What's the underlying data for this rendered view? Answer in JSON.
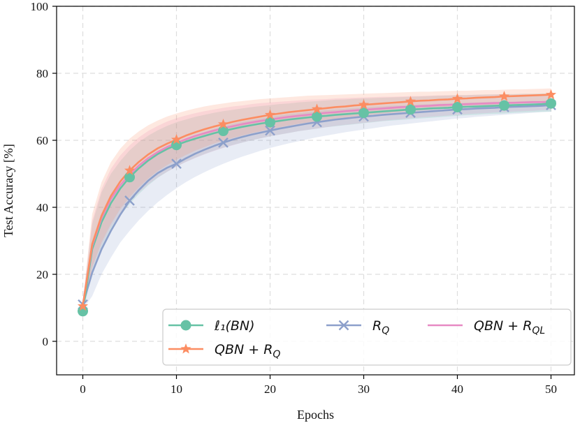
{
  "chart_data": {
    "type": "line",
    "title": "",
    "xlabel": "Epochs",
    "ylabel": "Test Accuracy [%]",
    "xlim": [
      -2.8,
      52.5
    ],
    "ylim": [
      -10,
      100
    ],
    "xticks": [
      0,
      10,
      20,
      30,
      40,
      50
    ],
    "yticks": [
      0,
      20,
      40,
      60,
      80,
      100
    ],
    "grid": true,
    "legend_position": "lower-right",
    "x": [
      0,
      1,
      2,
      3,
      4,
      5,
      6,
      7,
      8,
      9,
      10,
      11,
      12,
      13,
      14,
      15,
      16,
      17,
      18,
      19,
      20,
      21,
      22,
      23,
      24,
      25,
      26,
      27,
      28,
      29,
      30,
      31,
      32,
      33,
      34,
      35,
      36,
      37,
      38,
      39,
      40,
      41,
      42,
      43,
      44,
      45,
      46,
      47,
      48,
      49,
      50
    ],
    "marker_every": 5,
    "series": [
      {
        "name": "ℓ₁(BN)",
        "legend_label": "ℓ₁(BN)",
        "color": "#66c2a5",
        "marker": "circle",
        "values": [
          9.0,
          27.5,
          35.5,
          41.2,
          45.6,
          49.0,
          51.7,
          54.0,
          55.9,
          57.4,
          58.6,
          59.6,
          60.5,
          61.3,
          62.1,
          62.8,
          63.4,
          64.0,
          64.5,
          65.0,
          65.4,
          65.8,
          66.2,
          66.5,
          66.8,
          67.1,
          67.3,
          67.6,
          67.8,
          68.0,
          68.2,
          68.4,
          68.6,
          68.8,
          69.0,
          69.2,
          69.3,
          69.5,
          69.6,
          69.7,
          69.9,
          70.0,
          70.1,
          70.2,
          70.3,
          70.4,
          70.5,
          70.6,
          70.7,
          70.8,
          71.0
        ],
        "band_upper": [
          11.5,
          35.0,
          44.5,
          50.0,
          53.8,
          57.0,
          59.5,
          61.4,
          63.0,
          64.3,
          65.4,
          66.2,
          67.0,
          67.6,
          68.2,
          68.7,
          69.1,
          69.5,
          69.9,
          70.2,
          70.5,
          70.8,
          71.0,
          71.3,
          71.5,
          71.7,
          71.9,
          72.1,
          72.2,
          72.4,
          72.5,
          72.6,
          72.7,
          72.8,
          72.9,
          73.0,
          73.1,
          73.2,
          73.3,
          73.4,
          73.5,
          73.5,
          73.6,
          73.7,
          73.7,
          73.8,
          73.8,
          73.9,
          73.9,
          74.0,
          74.0
        ],
        "band_lower": [
          8.0,
          21.0,
          28.0,
          33.0,
          37.5,
          41.0,
          44.0,
          46.6,
          48.8,
          50.6,
          52.2,
          53.6,
          54.8,
          55.9,
          56.9,
          57.8,
          58.6,
          59.3,
          60.0,
          60.6,
          61.2,
          61.7,
          62.2,
          62.7,
          63.1,
          63.5,
          63.9,
          64.2,
          64.5,
          64.8,
          65.1,
          65.4,
          65.7,
          65.9,
          66.1,
          66.3,
          66.5,
          66.7,
          66.9,
          67.1,
          67.3,
          67.5,
          67.6,
          67.8,
          67.9,
          68.0,
          68.2,
          68.3,
          68.4,
          68.5,
          68.6
        ]
      },
      {
        "name": "QBN + R_Q",
        "legend_label": "QBN + R",
        "legend_sub": "Q",
        "color": "#fc8d62",
        "marker": "star",
        "values": [
          10.5,
          29.0,
          37.5,
          43.4,
          47.7,
          51.0,
          53.6,
          55.8,
          57.6,
          59.0,
          60.2,
          61.4,
          62.4,
          63.3,
          64.1,
          64.8,
          65.5,
          66.1,
          66.6,
          67.1,
          67.6,
          68.0,
          68.4,
          68.7,
          69.0,
          69.3,
          69.6,
          69.9,
          70.1,
          70.4,
          70.6,
          70.8,
          71.0,
          71.2,
          71.4,
          71.6,
          71.8,
          71.9,
          72.1,
          72.2,
          72.4,
          72.5,
          72.7,
          72.8,
          72.9,
          73.1,
          73.2,
          73.3,
          73.4,
          73.5,
          73.6
        ],
        "band_upper": [
          12.0,
          38.0,
          47.5,
          53.5,
          57.5,
          60.5,
          62.7,
          64.5,
          65.9,
          67.1,
          68.0,
          68.8,
          69.5,
          70.1,
          70.6,
          71.0,
          71.4,
          71.7,
          72.0,
          72.3,
          72.5,
          72.7,
          72.9,
          73.1,
          73.3,
          73.4,
          73.5,
          73.6,
          73.7,
          73.8,
          73.9,
          74.0,
          74.1,
          74.2,
          74.3,
          74.4,
          74.5,
          74.5,
          74.6,
          74.7,
          74.8,
          74.8,
          74.9,
          75.0,
          75.0,
          75.1,
          75.2,
          75.2,
          75.3,
          75.4,
          75.5
        ],
        "band_lower": [
          9.0,
          22.0,
          29.5,
          35.0,
          39.5,
          43.0,
          46.0,
          48.6,
          50.8,
          52.6,
          54.2,
          55.6,
          56.9,
          58.0,
          59.0,
          59.9,
          60.7,
          61.4,
          62.1,
          62.7,
          63.3,
          63.9,
          64.4,
          64.9,
          65.3,
          65.7,
          66.1,
          66.5,
          66.8,
          67.1,
          67.4,
          67.7,
          68.0,
          68.2,
          68.5,
          68.7,
          68.9,
          69.1,
          69.3,
          69.5,
          69.7,
          69.9,
          70.1,
          70.3,
          70.4,
          70.6,
          70.8,
          70.9,
          71.1,
          71.2,
          71.3
        ]
      },
      {
        "name": "R_Q",
        "legend_label": "R",
        "legend_sub": "Q",
        "color": "#8da0cb",
        "marker": "x",
        "values": [
          11.0,
          20.5,
          27.5,
          33.0,
          37.8,
          42.0,
          45.2,
          48.0,
          50.2,
          51.8,
          53.0,
          54.6,
          56.0,
          57.2,
          58.3,
          59.3,
          60.2,
          61.0,
          61.7,
          62.3,
          62.9,
          63.5,
          64.0,
          64.5,
          65.0,
          65.4,
          65.8,
          66.2,
          66.5,
          66.8,
          67.1,
          67.3,
          67.6,
          67.8,
          68.0,
          68.2,
          68.4,
          68.6,
          68.8,
          69.0,
          69.2,
          69.3,
          69.5,
          69.6,
          69.7,
          69.9,
          70.0,
          70.1,
          70.2,
          70.3,
          70.5
        ],
        "band_upper": [
          12.0,
          27.0,
          34.5,
          40.5,
          45.0,
          48.5,
          51.5,
          54.0,
          56.0,
          57.7,
          59.0,
          60.3,
          61.5,
          62.5,
          63.4,
          64.2,
          64.9,
          65.5,
          66.0,
          66.5,
          67.0,
          67.4,
          67.8,
          68.1,
          68.4,
          68.7,
          69.0,
          69.2,
          69.4,
          69.6,
          69.8,
          70.0,
          70.1,
          70.3,
          70.4,
          70.6,
          70.7,
          70.8,
          70.9,
          71.0,
          71.1,
          71.2,
          71.3,
          71.4,
          71.5,
          71.5,
          71.6,
          71.7,
          71.8,
          71.8,
          71.9
        ],
        "band_lower": [
          9.5,
          13.5,
          20.0,
          25.0,
          29.5,
          33.0,
          36.2,
          39.0,
          41.5,
          43.7,
          45.7,
          47.5,
          49.1,
          50.5,
          51.8,
          53.0,
          54.1,
          55.1,
          56.0,
          56.9,
          57.7,
          58.4,
          59.1,
          59.7,
          60.3,
          60.9,
          61.4,
          61.9,
          62.4,
          62.8,
          63.2,
          63.6,
          64.0,
          64.4,
          64.7,
          65.0,
          65.3,
          65.6,
          65.9,
          66.2,
          66.5,
          66.7,
          67.0,
          67.2,
          67.4,
          67.6,
          67.8,
          68.0,
          68.2,
          68.4,
          68.5
        ]
      },
      {
        "name": "QBN + R_QL",
        "legend_label": "QBN + R",
        "legend_sub": "QL",
        "color": "#e78ac3",
        "marker": "none",
        "values": [
          10.8,
          28.5,
          36.8,
          42.5,
          46.6,
          49.8,
          52.5,
          54.7,
          56.5,
          58.0,
          59.2,
          60.3,
          61.3,
          62.1,
          62.9,
          63.6,
          64.2,
          64.8,
          65.3,
          65.8,
          66.2,
          66.6,
          67.0,
          67.3,
          67.6,
          67.9,
          68.2,
          68.4,
          68.7,
          68.9,
          69.1,
          69.3,
          69.5,
          69.7,
          69.9,
          70.0,
          70.2,
          70.3,
          70.5,
          70.6,
          70.7,
          70.8,
          70.9,
          71.0,
          71.1,
          71.2,
          71.2,
          71.3,
          71.4,
          71.4,
          71.5
        ],
        "band_upper": [
          12.0,
          36.0,
          45.5,
          51.5,
          55.5,
          58.5,
          60.9,
          62.8,
          64.3,
          65.6,
          66.6,
          67.4,
          68.1,
          68.7,
          69.2,
          69.7,
          70.1,
          70.4,
          70.8,
          71.1,
          71.3,
          71.5,
          71.7,
          71.9,
          72.1,
          72.2,
          72.3,
          72.5,
          72.6,
          72.7,
          72.8,
          72.9,
          73.0,
          73.0,
          73.1,
          73.2,
          73.2,
          73.3,
          73.4,
          73.4,
          73.5,
          73.5,
          73.6,
          73.6,
          73.7,
          73.7,
          73.7,
          73.8,
          73.8,
          73.8,
          73.9
        ],
        "band_lower": [
          9.0,
          21.5,
          28.5,
          34.0,
          38.2,
          41.6,
          44.5,
          46.9,
          48.9,
          50.6,
          52.1,
          53.5,
          54.7,
          55.8,
          56.8,
          57.7,
          58.5,
          59.3,
          60.0,
          60.6,
          61.2,
          61.7,
          62.2,
          62.7,
          63.1,
          63.5,
          63.9,
          64.3,
          64.6,
          64.9,
          65.2,
          65.5,
          65.8,
          66.1,
          66.3,
          66.6,
          66.8,
          67.0,
          67.2,
          67.4,
          67.6,
          67.8,
          68.0,
          68.1,
          68.3,
          68.4,
          68.6,
          68.7,
          68.8,
          69.0,
          69.1
        ]
      }
    ]
  }
}
